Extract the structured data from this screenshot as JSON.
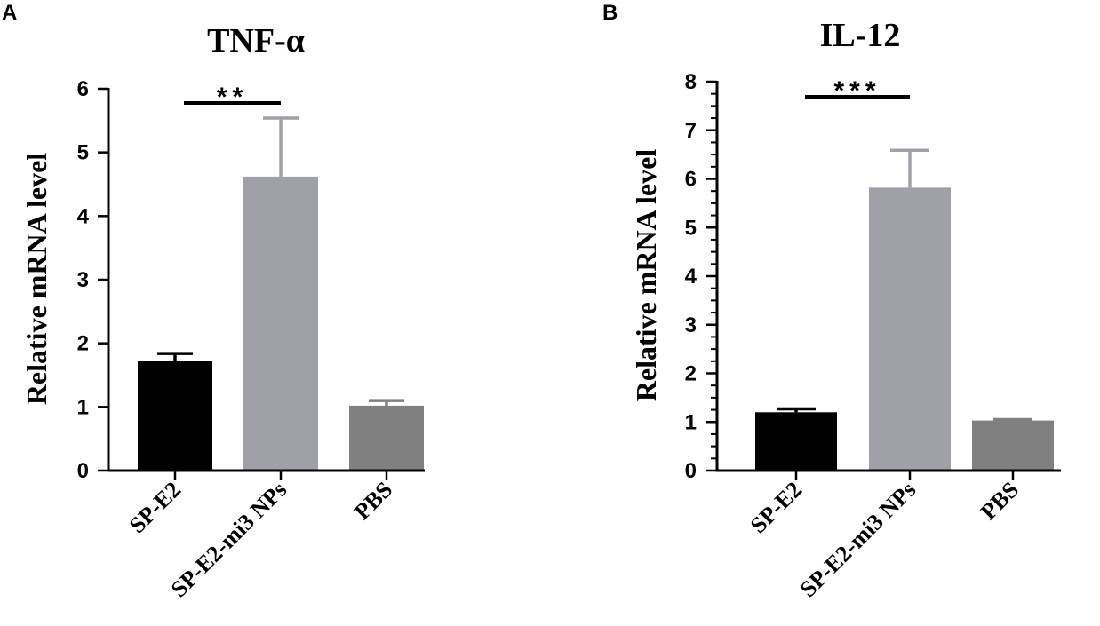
{
  "chart_data": [
    {
      "type": "bar",
      "panel_label": "A",
      "title": "TNF-α",
      "ylabel": "Relative mRNA level",
      "xlabel": "",
      "categories": [
        "SP-E2",
        "SP-E2-mi3 NPs",
        "PBS"
      ],
      "values": [
        1.72,
        4.62,
        1.02
      ],
      "errors": [
        0.12,
        0.92,
        0.08
      ],
      "colors": [
        "#000000",
        "#a0a0a8",
        "#808080"
      ],
      "ylim": [
        0,
        6
      ],
      "yticks": [
        "0",
        "1",
        "2",
        "3",
        "4",
        "5",
        "6"
      ],
      "ytick_values": [
        0,
        1,
        2,
        3,
        4,
        5,
        6
      ],
      "minor_per_major": 0,
      "grid": false,
      "significance": {
        "label": "**",
        "from": 0,
        "to": 1
      }
    },
    {
      "type": "bar",
      "panel_label": "B",
      "title": "IL-12",
      "ylabel": "Relative mRNA level",
      "xlabel": "",
      "categories": [
        "SP-E2",
        "SP-E2-mi3 NPs",
        "PBS"
      ],
      "values": [
        1.2,
        5.82,
        1.03
      ],
      "errors": [
        0.07,
        0.77,
        0.02
      ],
      "colors": [
        "#000000",
        "#a0a0a8",
        "#808080"
      ],
      "ylim": [
        0,
        8
      ],
      "yticks": [
        "0",
        "1",
        "2",
        "3",
        "4",
        "5",
        "6",
        "7",
        "8"
      ],
      "ytick_values": [
        0,
        1,
        2,
        3,
        4,
        5,
        6,
        7,
        8
      ],
      "minor_per_major": 3,
      "grid": false,
      "significance": {
        "label": "***",
        "from": 0,
        "to": 1
      }
    }
  ]
}
